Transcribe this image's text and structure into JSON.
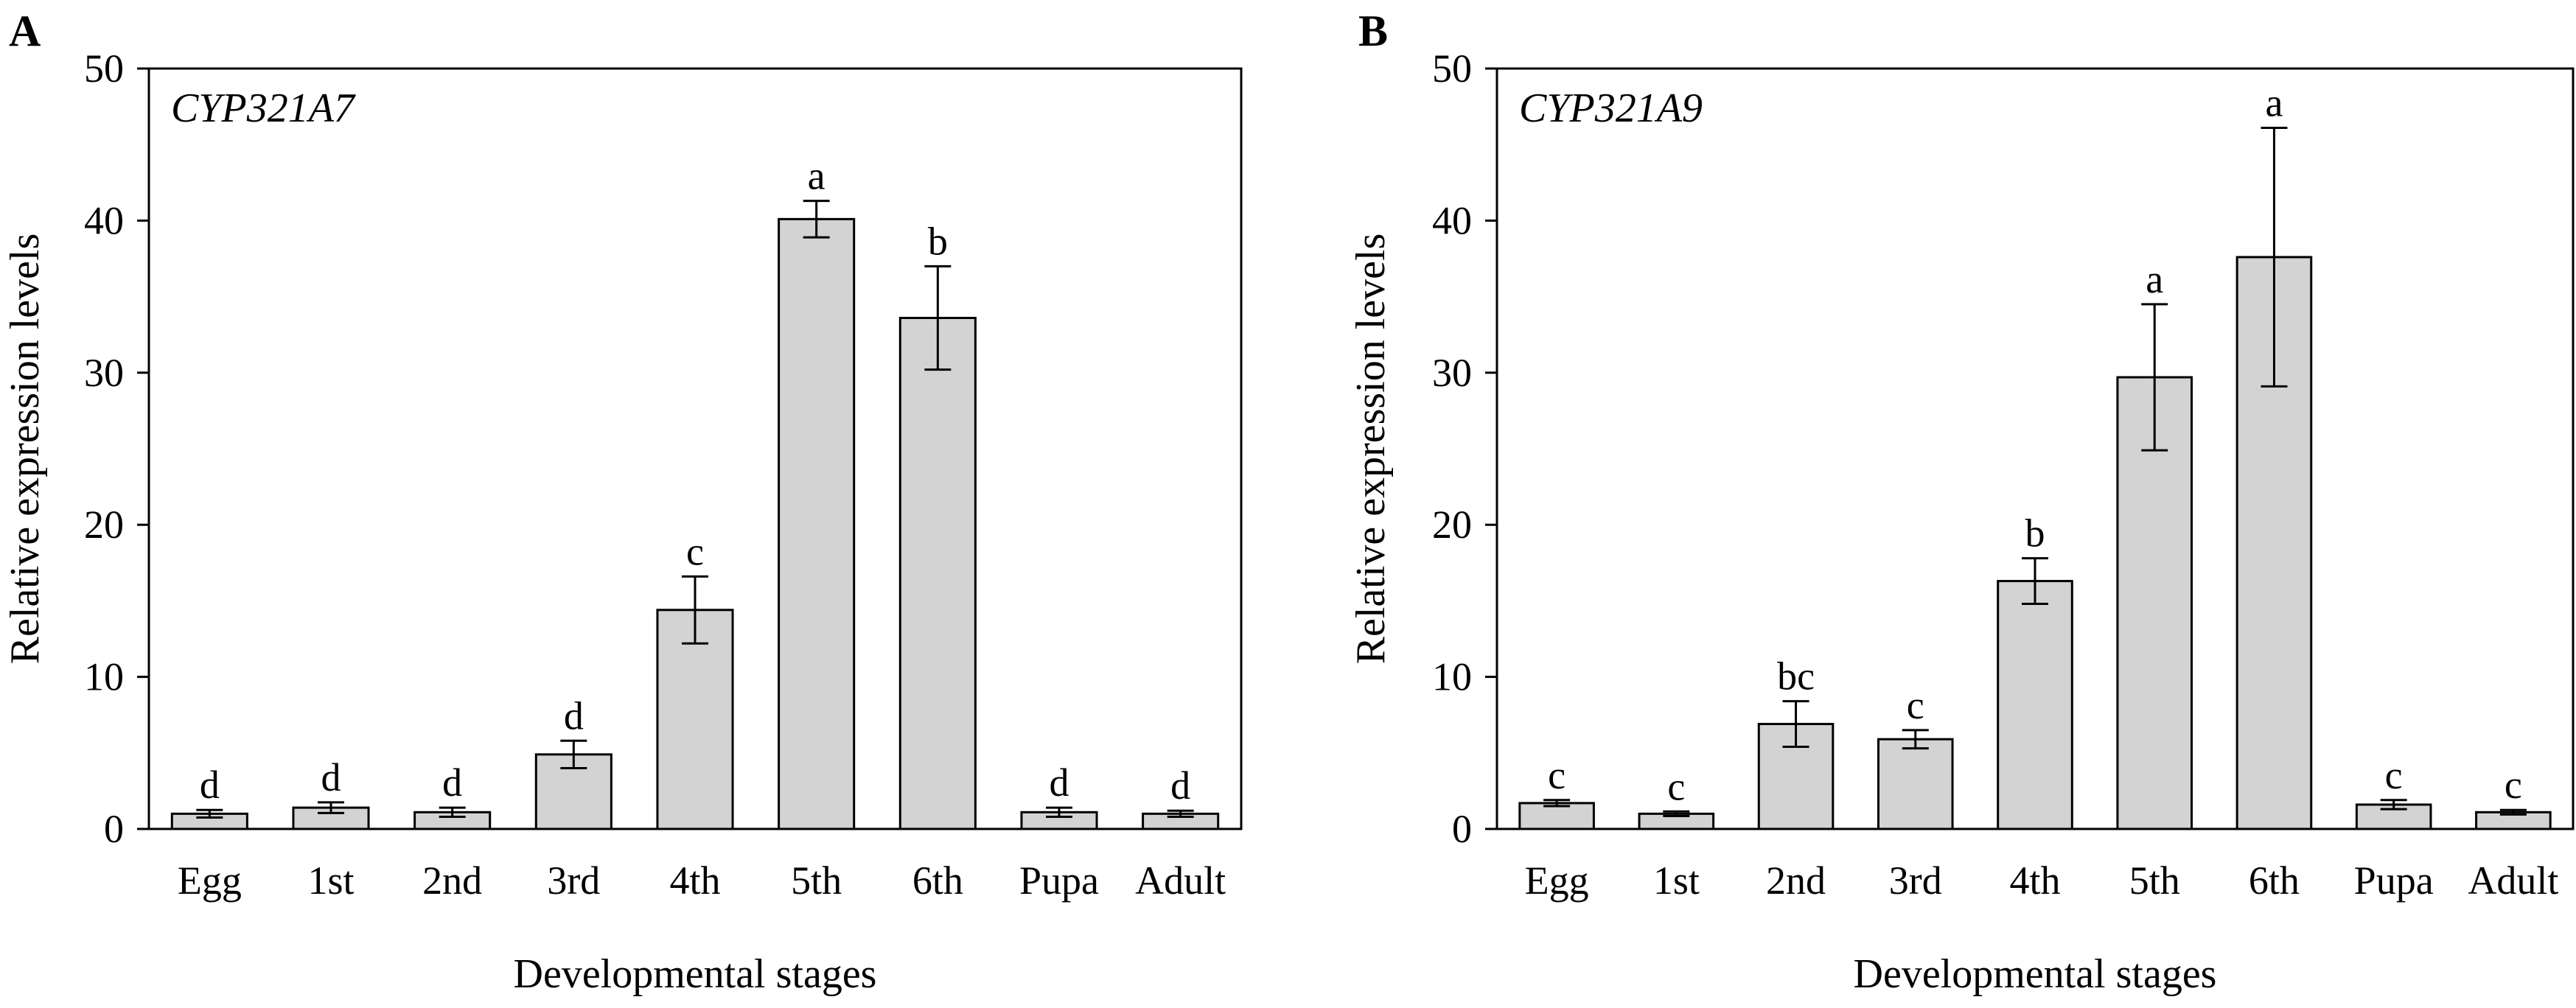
{
  "chart_data": [
    {
      "type": "bar",
      "panel_label": "A",
      "gene": "CYP321A7",
      "categories": [
        "Egg",
        "1st",
        "2nd",
        "3rd",
        "4th",
        "5th",
        "6th",
        "Pupa",
        "Adult"
      ],
      "values": [
        1.0,
        1.4,
        1.1,
        4.9,
        14.4,
        40.1,
        33.6,
        1.1,
        1.0
      ],
      "errors": [
        0.25,
        0.35,
        0.3,
        0.9,
        2.2,
        1.2,
        3.4,
        0.3,
        0.2
      ],
      "letters": [
        "d",
        "d",
        "d",
        "d",
        "c",
        "a",
        "b",
        "d",
        "d"
      ],
      "xlabel": "Developmental stages",
      "ylabel": "Relative expression levels",
      "ylim": [
        0,
        50
      ],
      "yticks": [
        "0",
        "10",
        "20",
        "30",
        "40",
        "50"
      ]
    },
    {
      "type": "bar",
      "panel_label": "B",
      "gene": "CYP321A9",
      "categories": [
        "Egg",
        "1st",
        "2nd",
        "3rd",
        "4th",
        "5th",
        "6th",
        "Pupa",
        "Adult"
      ],
      "values": [
        1.7,
        1.0,
        6.9,
        5.9,
        16.3,
        29.7,
        37.6,
        1.6,
        1.1
      ],
      "errors": [
        0.2,
        0.15,
        1.5,
        0.6,
        1.5,
        4.8,
        8.5,
        0.3,
        0.15
      ],
      "letters": [
        "c",
        "c",
        "bc",
        "c",
        "b",
        "a",
        "a",
        "c",
        "c"
      ],
      "xlabel": "Developmental stages",
      "ylabel": "Relative expression levels",
      "ylim": [
        0,
        50
      ],
      "yticks": [
        "0",
        "10",
        "20",
        "30",
        "40",
        "50"
      ]
    }
  ]
}
